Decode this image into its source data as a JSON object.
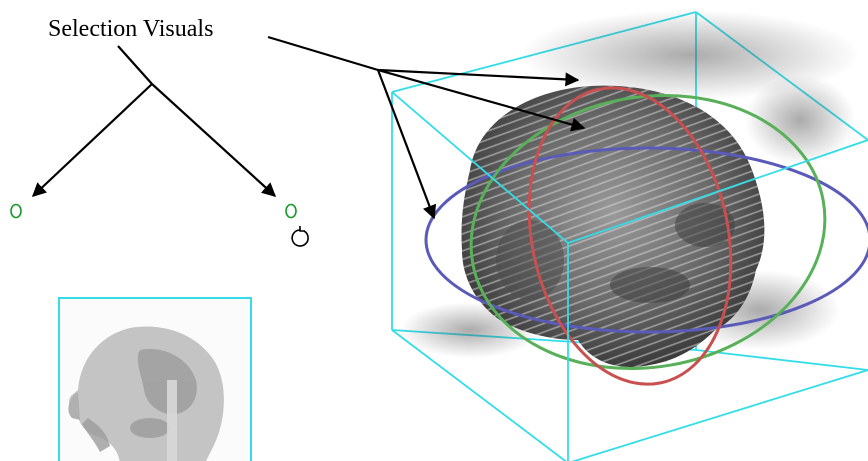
{
  "caption": {
    "text": "Selection Visuals"
  },
  "icons": {
    "cursor_left": "selection-handle-icon",
    "cursor_right": "selection-handle-icon",
    "rotate": "rotate-icon"
  },
  "colors": {
    "arrow": "#000000",
    "bounding_box": "#33dde8",
    "handle": "#1a9a2a",
    "ring_red": "#c85050",
    "ring_green": "#58b058",
    "ring_blue": "#5a5ab8",
    "slice_gray": "#bcbcbc",
    "volume_gray": "#5e5e5e"
  }
}
